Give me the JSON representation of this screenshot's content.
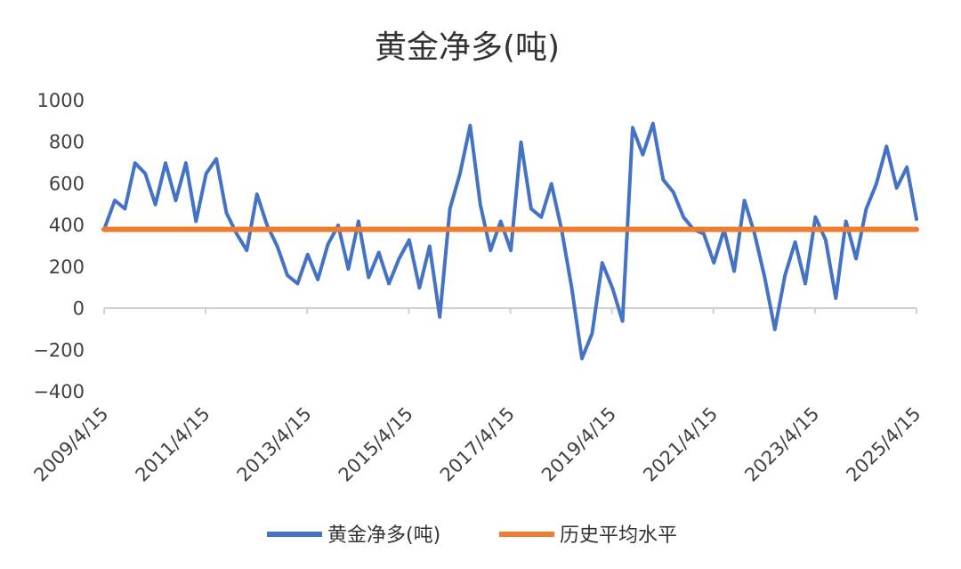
{
  "chart_data": {
    "type": "line",
    "title": "黄金净多(吨)",
    "xlabel": "",
    "ylabel": "",
    "ylim": [
      -400,
      1000
    ],
    "y_ticks": [
      "1000",
      "800",
      "600",
      "400",
      "200",
      "0",
      "−200",
      "−400"
    ],
    "x_ticks": [
      "2009/4/15",
      "2011/4/15",
      "2013/4/15",
      "2015/4/15",
      "2017/4/15",
      "2019/4/15",
      "2021/4/15",
      "2023/4/15",
      "2025/4/15"
    ],
    "legend_position": "bottom",
    "grid": false,
    "series": [
      {
        "name": "黄金净多(吨)",
        "color": "#4472C4",
        "x": [
          2009.29,
          2009.5,
          2009.7,
          2009.9,
          2010.1,
          2010.3,
          2010.5,
          2010.7,
          2010.9,
          2011.1,
          2011.3,
          2011.5,
          2011.7,
          2011.9,
          2012.1,
          2012.3,
          2012.5,
          2012.7,
          2012.9,
          2013.1,
          2013.3,
          2013.5,
          2013.7,
          2013.9,
          2014.1,
          2014.3,
          2014.5,
          2014.7,
          2014.9,
          2015.1,
          2015.3,
          2015.5,
          2015.7,
          2015.9,
          2016.1,
          2016.3,
          2016.5,
          2016.7,
          2016.9,
          2017.1,
          2017.3,
          2017.5,
          2017.7,
          2017.9,
          2018.1,
          2018.3,
          2018.5,
          2018.7,
          2018.9,
          2019.1,
          2019.3,
          2019.5,
          2019.7,
          2019.9,
          2020.1,
          2020.3,
          2020.5,
          2020.7,
          2020.9,
          2021.1,
          2021.3,
          2021.5,
          2021.7,
          2021.9,
          2022.1,
          2022.3,
          2022.5,
          2022.7,
          2022.9,
          2023.1,
          2023.3,
          2023.5,
          2023.7,
          2023.9,
          2024.1,
          2024.3,
          2024.5,
          2024.7,
          2024.9,
          2025.1,
          2025.29
        ],
        "values": [
          380,
          520,
          480,
          700,
          650,
          500,
          700,
          520,
          700,
          420,
          650,
          720,
          460,
          360,
          280,
          550,
          400,
          300,
          160,
          120,
          260,
          140,
          310,
          400,
          190,
          420,
          150,
          270,
          120,
          240,
          330,
          100,
          300,
          -40,
          480,
          650,
          880,
          500,
          280,
          420,
          280,
          800,
          480,
          440,
          600,
          380,
          100,
          -240,
          -120,
          220,
          100,
          -60,
          870,
          740,
          890,
          620,
          560,
          440,
          380,
          360,
          220,
          380,
          180,
          520,
          360,
          150,
          -100,
          160,
          320,
          120,
          440,
          330,
          50,
          420,
          240,
          480,
          600,
          780,
          580,
          680,
          430
        ]
      },
      {
        "name": "历史平均水平",
        "color": "#ED7D31",
        "x": [
          2009.29,
          2025.29
        ],
        "values": [
          381,
          381
        ]
      }
    ]
  }
}
